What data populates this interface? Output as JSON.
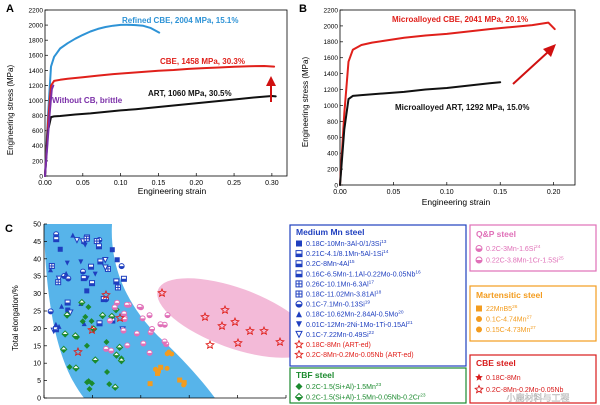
{
  "chart_data": [
    {
      "type": "line",
      "panel_label": "A",
      "xlabel": "Engineering strain",
      "ylabel": "Engineering stress (MPa)",
      "xlim": [
        0,
        0.32
      ],
      "ylim": [
        0,
        2200
      ],
      "xticks": [
        "0.00",
        "0.05",
        "0.10",
        "0.15",
        "0.20",
        "0.25",
        "0.30"
      ],
      "yticks": [
        "0",
        "200",
        "400",
        "600",
        "800",
        "1000",
        "1200",
        "1400",
        "1600",
        "1800",
        "2000",
        "2200"
      ],
      "series": [
        {
          "name": "Refined CBE, 2004 MPa, 15.1%",
          "color": "#2e93d6",
          "x": [
            0,
            0.004,
            0.008,
            0.012,
            0.015,
            0.02,
            0.03,
            0.04,
            0.05,
            0.06,
            0.07,
            0.08,
            0.09,
            0.1,
            0.11,
            0.12,
            0.13,
            0.14,
            0.151
          ],
          "y": [
            0,
            800,
            1450,
            1580,
            1620,
            1690,
            1760,
            1820,
            1870,
            1915,
            1950,
            1975,
            1992,
            2002,
            2004,
            2000,
            1990,
            1960,
            1900
          ]
        },
        {
          "name": "CBE, 1458 MPa, 30.3%",
          "color": "#e0201b",
          "x": [
            0,
            0.004,
            0.008,
            0.012,
            0.02,
            0.03,
            0.05,
            0.07,
            0.09,
            0.11,
            0.13,
            0.15,
            0.17,
            0.19,
            0.21,
            0.23,
            0.25,
            0.27,
            0.29,
            0.303
          ],
          "y": [
            0,
            700,
            1200,
            1260,
            1275,
            1290,
            1310,
            1330,
            1350,
            1365,
            1380,
            1395,
            1405,
            1420,
            1430,
            1438,
            1448,
            1455,
            1458,
            1450
          ]
        },
        {
          "name": "ART, 1060 MPa, 30.5%",
          "color": "#111111",
          "x": [
            0,
            0.004,
            0.008,
            0.012,
            0.02,
            0.04,
            0.06,
            0.08,
            0.1,
            0.12,
            0.14,
            0.16,
            0.18,
            0.2,
            0.22,
            0.24,
            0.26,
            0.28,
            0.3,
            0.305
          ],
          "y": [
            0,
            600,
            780,
            790,
            795,
            815,
            830,
            850,
            870,
            885,
            905,
            925,
            945,
            965,
            985,
            1005,
            1025,
            1045,
            1060,
            1055
          ]
        },
        {
          "name": "Without CB, brittle",
          "color": "#7b2fa8",
          "x": [
            0,
            0.003,
            0.006,
            0.009,
            0.011
          ],
          "y": [
            0,
            400,
            800,
            1150,
            1200
          ]
        }
      ]
    },
    {
      "type": "line",
      "panel_label": "B",
      "xlabel": "Engineering strain",
      "ylabel": "Engineering stress (MPa)",
      "xlim": [
        0,
        0.22
      ],
      "ylim": [
        0,
        2200
      ],
      "xticks": [
        "0.00",
        "0.05",
        "0.10",
        "0.15",
        "0.20"
      ],
      "yticks": [
        "0",
        "200",
        "400",
        "600",
        "800",
        "1000",
        "1200",
        "1400",
        "1600",
        "1800",
        "2000",
        "2200"
      ],
      "series": [
        {
          "name": "Microalloyed CBE, 2041 MPa, 20.1%",
          "color": "#e0201b",
          "x": [
            0,
            0.004,
            0.008,
            0.012,
            0.02,
            0.03,
            0.04,
            0.06,
            0.08,
            0.1,
            0.12,
            0.14,
            0.16,
            0.18,
            0.195,
            0.201
          ],
          "y": [
            0,
            900,
            1550,
            1700,
            1760,
            1790,
            1810,
            1850,
            1880,
            1900,
            1930,
            1960,
            1985,
            2010,
            2041,
            1960
          ]
        },
        {
          "name": "Microalloyed ART, 1292 MPa, 15.0%",
          "color": "#111111",
          "x": [
            0,
            0.004,
            0.008,
            0.012,
            0.02,
            0.04,
            0.06,
            0.08,
            0.1,
            0.12,
            0.14,
            0.15
          ],
          "y": [
            0,
            700,
            1080,
            1120,
            1130,
            1150,
            1170,
            1200,
            1220,
            1250,
            1280,
            1292
          ]
        }
      ]
    },
    {
      "type": "scatter",
      "panel_label": "C",
      "ylabel": "Total elongation/%",
      "ylim": [
        0,
        50
      ],
      "yticks": [
        "0",
        "5",
        "10",
        "15",
        "20",
        "25",
        "30",
        "35",
        "40",
        "45",
        "50"
      ],
      "regions": [
        {
          "name": "Medium Mn steel region",
          "color": "#3aa7e6"
        },
        {
          "name": "CBE steel region",
          "color": "#f2b3d4"
        }
      ],
      "legend": {
        "medium_mn": {
          "title": "Medium Mn steel",
          "items": [
            {
              "text": "0.18C-10Mn-3Al-0/1/3Si",
              "sup": "13",
              "color": "#1f3fbf",
              "marker": "square"
            },
            {
              "text": "0.21C-4.1/8.1Mn-5Al-1Si",
              "sup": "14",
              "color": "#1f3fbf",
              "marker": "square-half"
            },
            {
              "text": "0.2C-8Mn-4Al",
              "sup": "15",
              "color": "#1f3fbf",
              "marker": "square-half"
            },
            {
              "text": "0.16C-6.5Mn-1.1Al-0.22Mo-0.05Nb",
              "sup": "16",
              "color": "#1f3fbf",
              "marker": "square-half"
            },
            {
              "text": "0.26C-10.1Mn-6.3Al",
              "sup": "17",
              "color": "#1f3fbf",
              "marker": "square-grid"
            },
            {
              "text": "0.18C-11.02Mn-3.81Al",
              "sup": "18",
              "color": "#1f3fbf",
              "marker": "square-grid"
            },
            {
              "text": "0.1C-7.1Mn-0.13Si",
              "sup": "19",
              "color": "#1f3fbf",
              "marker": "circle-half"
            },
            {
              "text": "0.18C-10.62Mn-2.84Al-0.5Mo",
              "sup": "20",
              "color": "#1f3fbf",
              "marker": "triangle"
            },
            {
              "text": "0.01C-12Mn-2Ni-1Mo-1Ti-0.15Al",
              "sup": "21",
              "color": "#1f3fbf",
              "marker": "triangle-down"
            },
            {
              "text": "0.1C-7.22Mn-0.49Si",
              "sup": "22",
              "color": "#1f3fbf",
              "marker": "triangle-down-open"
            },
            {
              "text": "0.18C-8Mn (ART-ed)",
              "sup": "",
              "color": "#e0201b",
              "marker": "star-open"
            },
            {
              "text": "0.2C-8Mn-0.2Mo-0.05Nb (ART-ed)",
              "sup": "",
              "color": "#e0201b",
              "marker": "star-open"
            }
          ]
        },
        "tbf": {
          "title": "TBF steel",
          "items": [
            {
              "text": "0.2C-1.5(Si+Al)-1.5Mn",
              "sup": "23",
              "color": "#1b8a2e",
              "marker": "diamond"
            },
            {
              "text": "0.2C-1.5(Si+Al)-1.5Mn-0.05Nb-0.2Cr",
              "sup": "23",
              "color": "#1b8a2e",
              "marker": "diamond-half"
            }
          ]
        },
        "qp": {
          "title": "Q&P steel",
          "items": [
            {
              "text": "0.2C-3Mn-1.6Si",
              "sup": "24",
              "color": "#e070b8",
              "marker": "circle-half"
            },
            {
              "text": "0.22C-3.8Mn-1Cr-1.5Si",
              "sup": "25",
              "color": "#e070b8",
              "marker": "circle-half"
            }
          ]
        },
        "martensitic": {
          "title": "Martensitic steel",
          "items": [
            {
              "text": "22MnB5",
              "sup": "26",
              "color": "#f39c1f",
              "marker": "square"
            },
            {
              "text": "0.1C-4.74Mn",
              "sup": "27",
              "color": "#f39c1f",
              "marker": "circle"
            },
            {
              "text": "0.15C-4.73Mn",
              "sup": "27",
              "color": "#f39c1f",
              "marker": "circle"
            }
          ]
        },
        "cbe": {
          "title": "CBE steel",
          "items": [
            {
              "text": "0.18C-8Mn",
              "sup": "",
              "color": "#d81b1b",
              "marker": "star"
            },
            {
              "text": "0.2C-8Mn-0.2Mo-0.05Nb",
              "sup": "",
              "color": "#d81b1b",
              "marker": "star-open"
            }
          ]
        }
      }
    }
  ],
  "watermark": "小鹿材料与工程"
}
